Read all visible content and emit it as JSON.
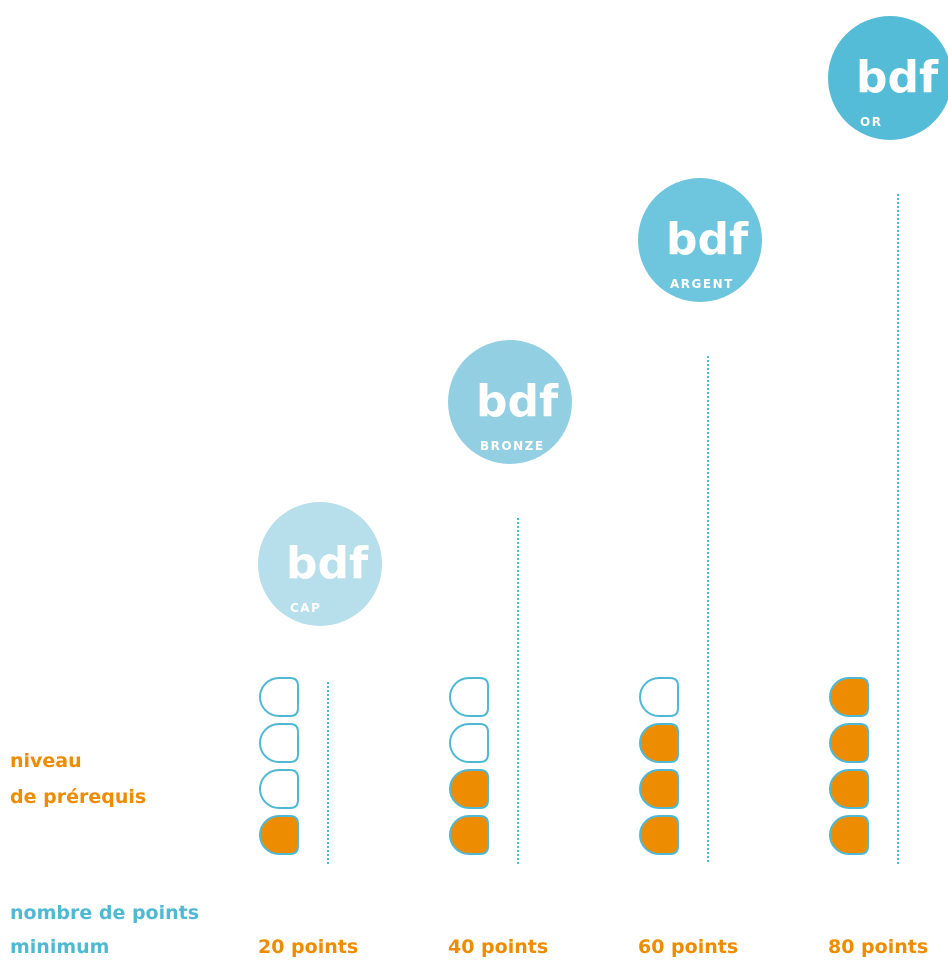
{
  "labels": {
    "prerequisite_line1": "niveau",
    "prerequisite_line2": "de prérequis",
    "points_line1": "nombre de points",
    "points_line2": "minimum"
  },
  "colors": {
    "accent_orange": "#ee8c00",
    "line_blue": "#4fb9d3",
    "badge_cap": "#b7dfeb",
    "badge_bronze": "#93cfe3",
    "badge_argent": "#6dc5de",
    "badge_or": "#54bcd6"
  },
  "levels": [
    {
      "badge_logo": "bdf",
      "badge_name": "CAP",
      "points": "20 points",
      "filled_circles": 1,
      "total_circles": 4
    },
    {
      "badge_logo": "bdf",
      "badge_name": "BRONZE",
      "points": "40 points",
      "filled_circles": 2,
      "total_circles": 4
    },
    {
      "badge_logo": "bdf",
      "badge_name": "ARGENT",
      "points": "60 points",
      "filled_circles": 3,
      "total_circles": 4
    },
    {
      "badge_logo": "bdf",
      "badge_name": "OR",
      "points": "80 points",
      "filled_circles": 4,
      "total_circles": 4
    }
  ]
}
